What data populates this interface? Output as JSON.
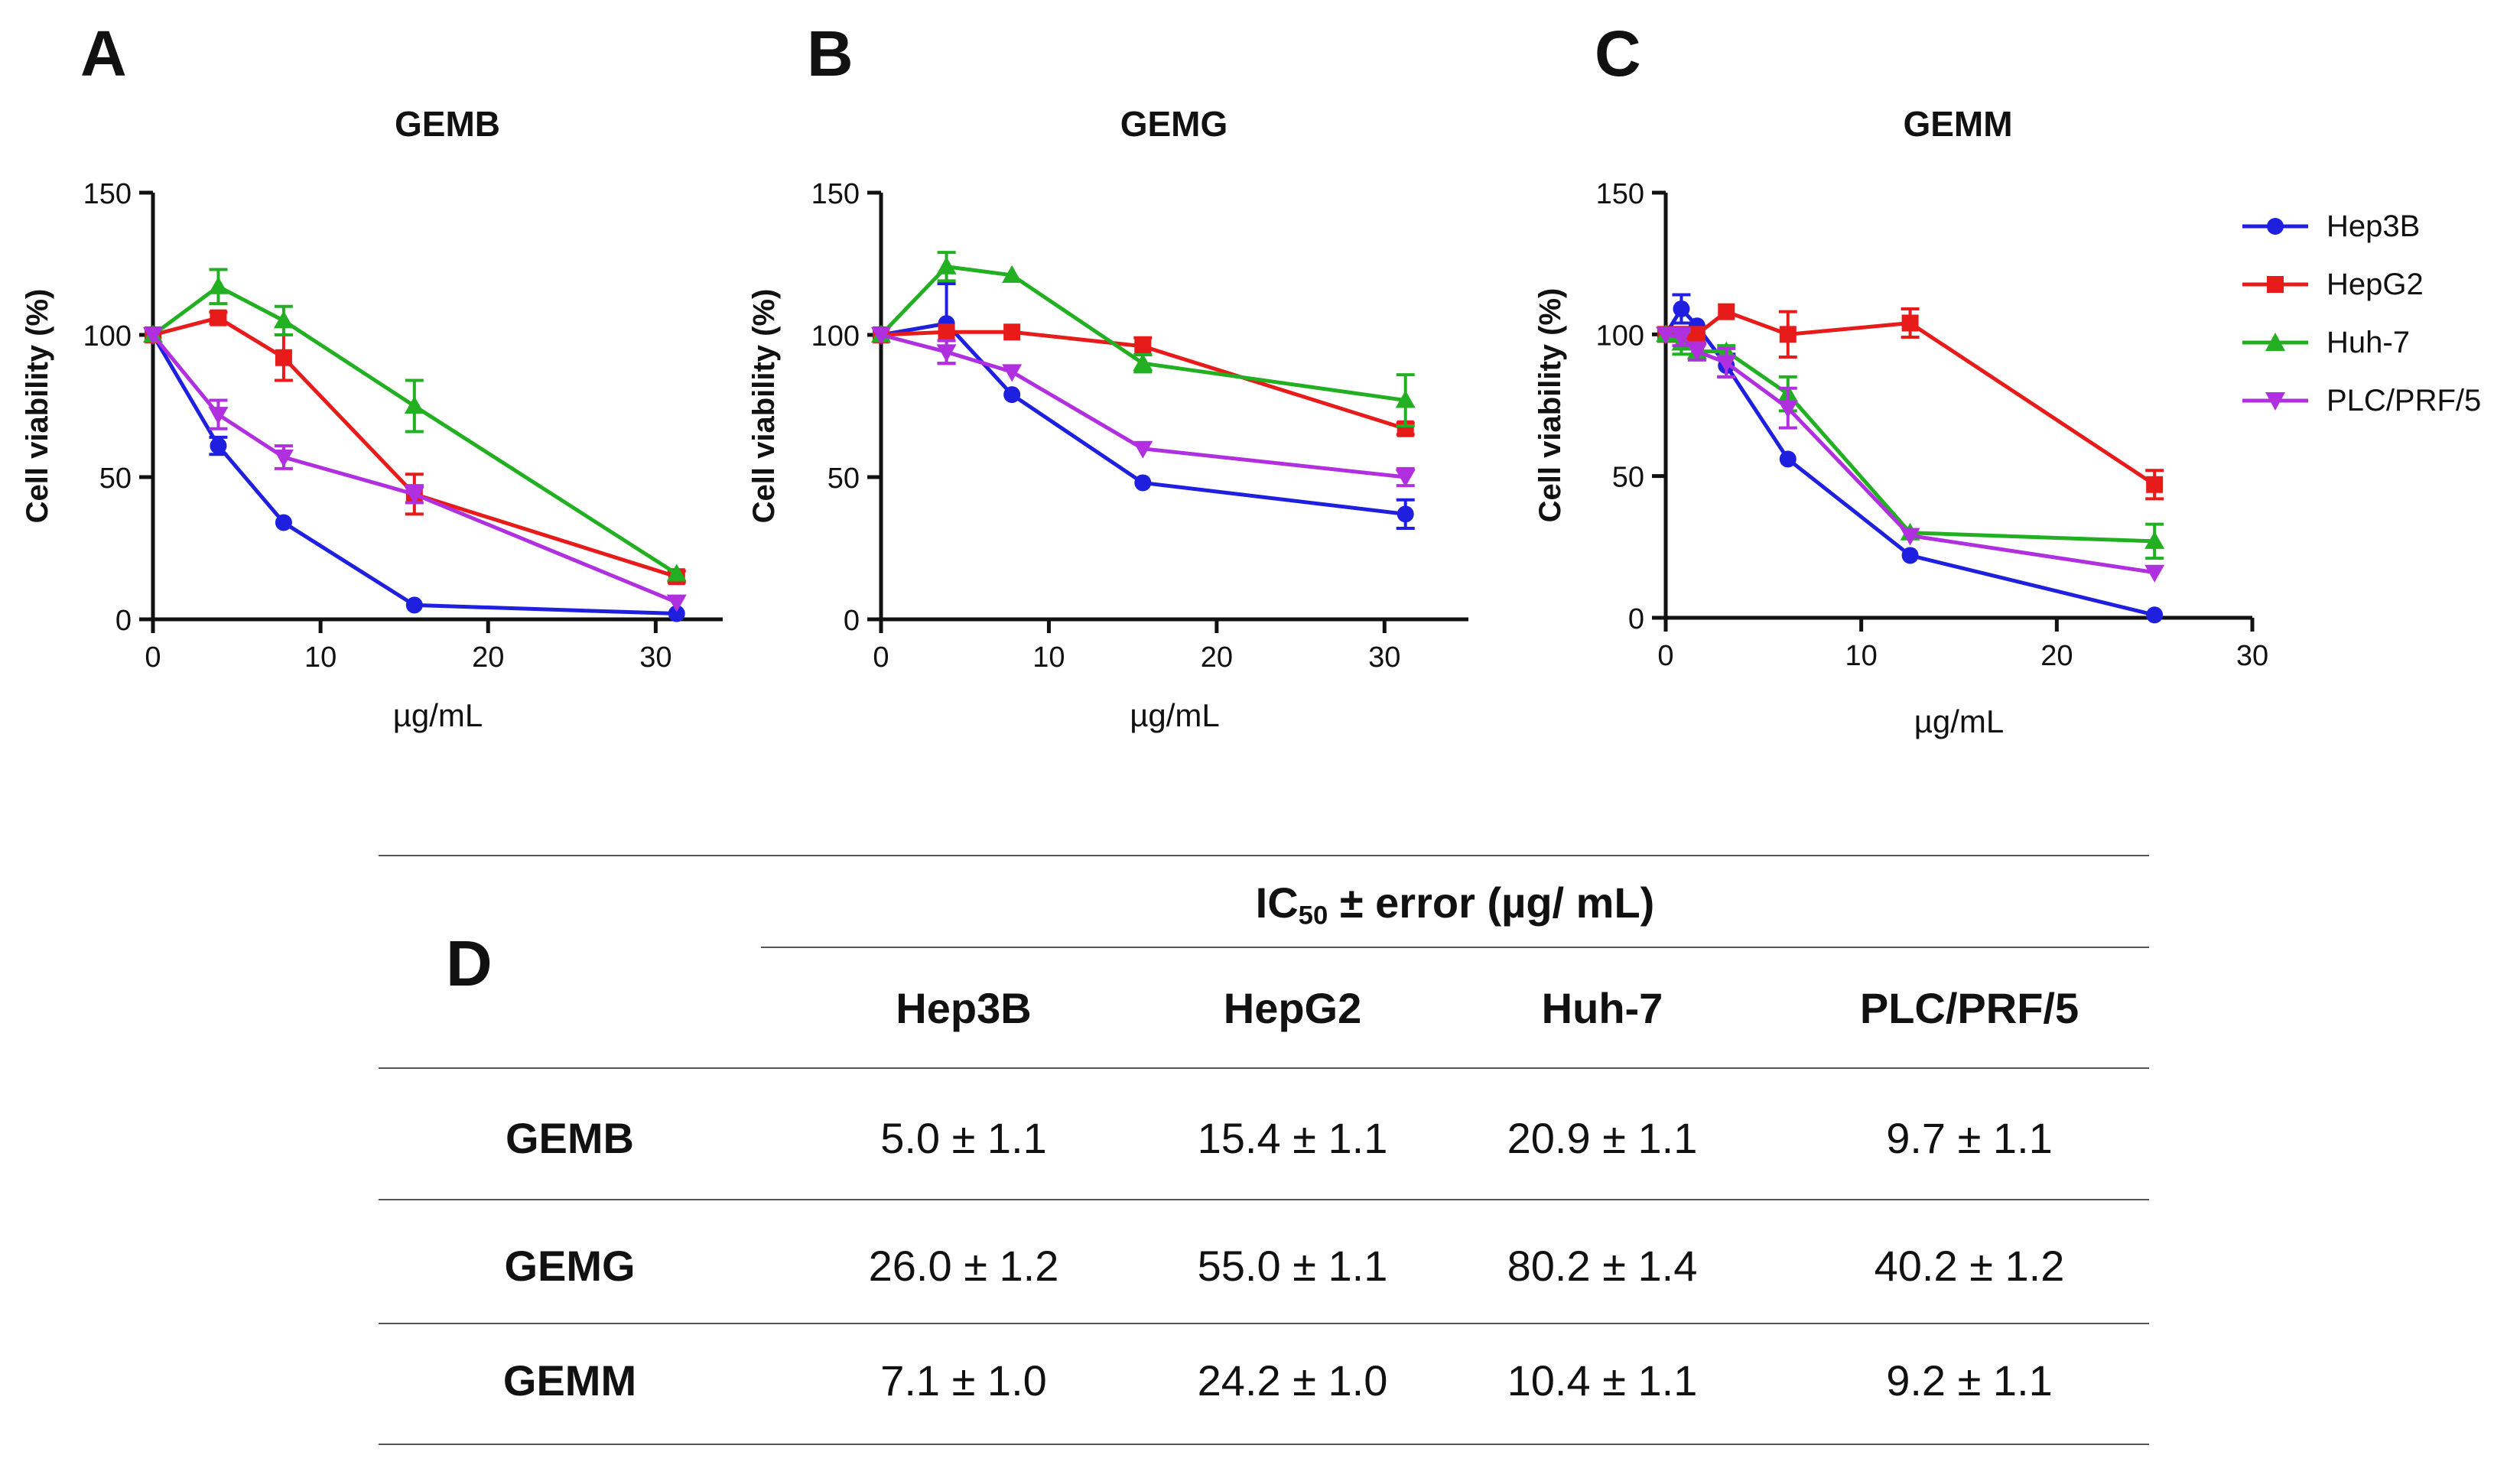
{
  "panel_letters": [
    "A",
    "B",
    "C",
    "D"
  ],
  "legend": [
    {
      "name": "Hep3B",
      "color": "#1f1fe0",
      "marker": "circle"
    },
    {
      "name": "HepG2",
      "color": "#e81b1b",
      "marker": "square"
    },
    {
      "name": "Huh-7",
      "color": "#22b022",
      "marker": "triangle-up"
    },
    {
      "name": "PLC/PRF/5",
      "color": "#b030e0",
      "marker": "triangle-down"
    }
  ],
  "chart_data": [
    {
      "type": "line",
      "title": "GEMB",
      "xlabel": "µg/mL",
      "ylabel": "Cell viability (%)",
      "xlim": [
        0,
        34
      ],
      "ylim": [
        0,
        150
      ],
      "xticks": [
        0,
        10,
        20,
        30
      ],
      "yticks": [
        0,
        50,
        100,
        150
      ],
      "series": [
        {
          "name": "Hep3B",
          "x": [
            0,
            3.9,
            7.8,
            15.6,
            31.25
          ],
          "y": [
            100,
            61,
            34,
            5,
            2
          ],
          "err": [
            0,
            3,
            0,
            0,
            0
          ]
        },
        {
          "name": "HepG2",
          "x": [
            0,
            3.9,
            7.8,
            15.6,
            31.25
          ],
          "y": [
            100,
            106,
            92,
            44,
            15
          ],
          "err": [
            0,
            2,
            8,
            7,
            2
          ]
        },
        {
          "name": "Huh-7",
          "x": [
            0,
            3.9,
            7.8,
            15.6,
            31.25
          ],
          "y": [
            100,
            117,
            105,
            75,
            16
          ],
          "err": [
            0,
            6,
            5,
            9,
            0
          ]
        },
        {
          "name": "PLC/PRF/5",
          "x": [
            0,
            3.9,
            7.8,
            15.6,
            31.25
          ],
          "y": [
            100,
            72,
            57,
            44,
            6
          ],
          "err": [
            0,
            5,
            4,
            3,
            0
          ]
        }
      ]
    },
    {
      "type": "line",
      "title": "GEMG",
      "xlabel": "µg/mL",
      "ylabel": "Cell viability (%)",
      "xlim": [
        0,
        35
      ],
      "ylim": [
        0,
        150
      ],
      "xticks": [
        0,
        10,
        20,
        30
      ],
      "yticks": [
        0,
        50,
        100,
        150
      ],
      "series": [
        {
          "name": "Hep3B",
          "x": [
            0,
            3.9,
            7.8,
            15.6,
            31.25
          ],
          "y": [
            100,
            104,
            79,
            48,
            37
          ],
          "err": [
            0,
            14,
            0,
            0,
            5
          ]
        },
        {
          "name": "HepG2",
          "x": [
            0,
            3.9,
            7.8,
            15.6,
            31.25
          ],
          "y": [
            100,
            101,
            101,
            96,
            67
          ],
          "err": [
            0,
            0,
            0,
            3,
            2
          ]
        },
        {
          "name": "Huh-7",
          "x": [
            0,
            3.9,
            7.8,
            15.6,
            31.25
          ],
          "y": [
            100,
            124,
            121,
            90,
            77
          ],
          "err": [
            0,
            5,
            0,
            3,
            9
          ]
        },
        {
          "name": "PLC/PRF/5",
          "x": [
            0,
            3.9,
            7.8,
            15.6,
            31.25
          ],
          "y": [
            100,
            94,
            87,
            60,
            50
          ],
          "err": [
            0,
            4,
            0,
            0,
            3
          ]
        }
      ]
    },
    {
      "type": "line",
      "title": "GEMM",
      "xlabel": "µg/mL",
      "ylabel": "Cell viability (%)",
      "xlim": [
        0,
        30
      ],
      "ylim": [
        0,
        150
      ],
      "xticks": [
        0,
        10,
        20,
        30
      ],
      "yticks": [
        0,
        50,
        100,
        150
      ],
      "series": [
        {
          "name": "Hep3B",
          "x": [
            0,
            0.8,
            1.6,
            3.1,
            6.25,
            12.5,
            25
          ],
          "y": [
            100,
            109,
            103,
            89,
            56,
            22,
            1
          ],
          "err": [
            0,
            5,
            0,
            4,
            0,
            0,
            0
          ]
        },
        {
          "name": "HepG2",
          "x": [
            0,
            0.8,
            1.6,
            3.1,
            6.25,
            12.5,
            25
          ],
          "y": [
            100,
            100,
            100,
            108,
            100,
            104,
            47
          ],
          "err": [
            0,
            0,
            0,
            0,
            8,
            5,
            5
          ]
        },
        {
          "name": "Huh-7",
          "x": [
            0,
            0.8,
            1.6,
            3.1,
            6.25,
            12.5,
            25
          ],
          "y": [
            100,
            97,
            94,
            94,
            79,
            30,
            27
          ],
          "err": [
            0,
            4,
            3,
            2,
            6,
            0,
            6
          ]
        },
        {
          "name": "PLC/PRF/5",
          "x": [
            0,
            0.8,
            1.6,
            3.1,
            6.25,
            12.5,
            25
          ],
          "y": [
            100,
            99,
            94,
            90,
            74,
            29,
            16
          ],
          "err": [
            0,
            3,
            3,
            5,
            7,
            0,
            0
          ]
        }
      ]
    }
  ],
  "table": {
    "panel": "D",
    "header_main": "IC",
    "header_sub": "50",
    "header_rest": " ± error (µg/ mL)",
    "columns": [
      "Hep3B",
      "HepG2",
      "Huh-7",
      "PLC/PRF/5"
    ],
    "rows": [
      {
        "label": "GEMB",
        "values": [
          "5.0 ± 1.1",
          "15.4 ± 1.1",
          "20.9 ± 1.1",
          "9.7 ± 1.1"
        ]
      },
      {
        "label": "GEMG",
        "values": [
          "26.0 ± 1.2",
          "55.0 ± 1.1",
          "80.2 ± 1.4",
          "40.2 ± 1.2"
        ]
      },
      {
        "label": "GEMM",
        "values": [
          "7.1 ± 1.0",
          "24.2 ± 1.0",
          "10.4 ± 1.1",
          "9.2 ± 1.1"
        ]
      }
    ]
  }
}
